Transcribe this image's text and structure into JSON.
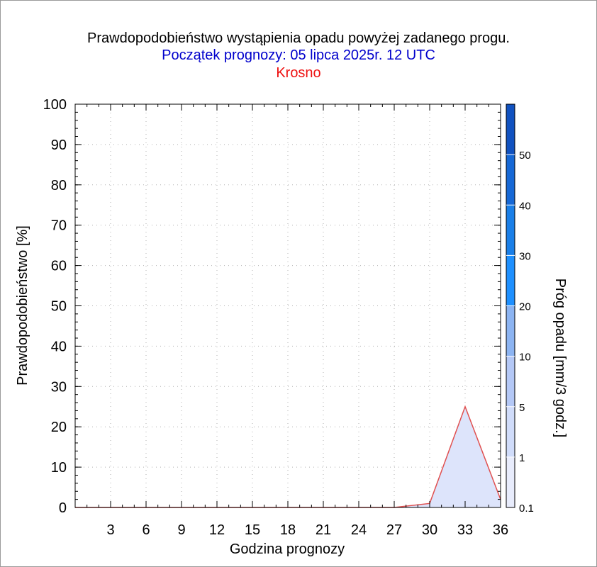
{
  "title": "Prawdopodobieństwo wystąpienia opadu powyżej zadanego progu.",
  "subtitle": "Początek prognozy: 05 lipca 2025r. 12 UTC",
  "location": "Krosno",
  "colors": {
    "subtitle": "#0000cc",
    "location": "#ee1111",
    "series_line": "#e05050",
    "series_fill": "#dde4fb",
    "grid": "#b0b0b0"
  },
  "chart_data": {
    "type": "area",
    "title": "Prawdopodobieństwo wystąpienia opadu powyżej zadanego progu.",
    "subtitle": "Początek prognozy: 05 lipca 2025r. 12 UTC",
    "xlabel": "Godzina prognozy",
    "ylabel": "Prawdopodobieństwo [%]",
    "xlim": [
      0,
      36
    ],
    "ylim": [
      0,
      100
    ],
    "x_ticks": [
      3,
      6,
      9,
      12,
      15,
      18,
      21,
      24,
      27,
      30,
      33,
      36
    ],
    "y_ticks": [
      0,
      10,
      20,
      30,
      40,
      50,
      60,
      70,
      80,
      90,
      100
    ],
    "grid": true,
    "series": [
      {
        "x": [
          0,
          3,
          6,
          9,
          12,
          15,
          18,
          21,
          24,
          27,
          30,
          33,
          36
        ],
        "values": [
          0,
          0,
          0,
          0,
          0,
          0,
          0,
          0,
          0,
          0,
          1,
          25,
          2
        ],
        "threshold_band": "0.1"
      }
    ],
    "colorbar": {
      "label": "Próg opadu [mm/3 godz.]",
      "levels": [
        "0.1",
        "1",
        "5",
        "10",
        "20",
        "30",
        "40",
        "50",
        ""
      ],
      "colors": [
        "#e8ecfc",
        "#d0dcfa",
        "#b4c8f6",
        "#8cb4f2",
        "#1e90ff",
        "#1a7fe8",
        "#1668d6",
        "#1152c0",
        "#0a3aa8"
      ]
    }
  }
}
